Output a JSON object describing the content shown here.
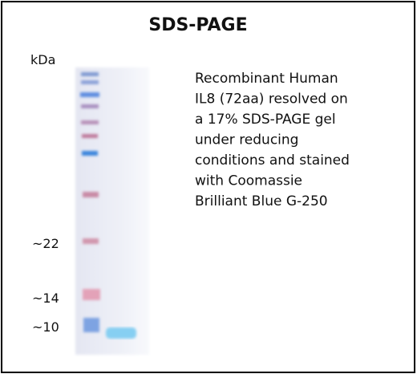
{
  "figure": {
    "title": "SDS-PAGE",
    "unit_label": "kDa",
    "markers": [
      "~22",
      "~14",
      "~10"
    ],
    "description": [
      "Recombinant Human",
      "IL8 (72aa) resolved on",
      "a 17% SDS-PAGE gel",
      "under reducing",
      "conditions and stained",
      "with Coomassie",
      "Brilliant Blue G-250"
    ]
  }
}
